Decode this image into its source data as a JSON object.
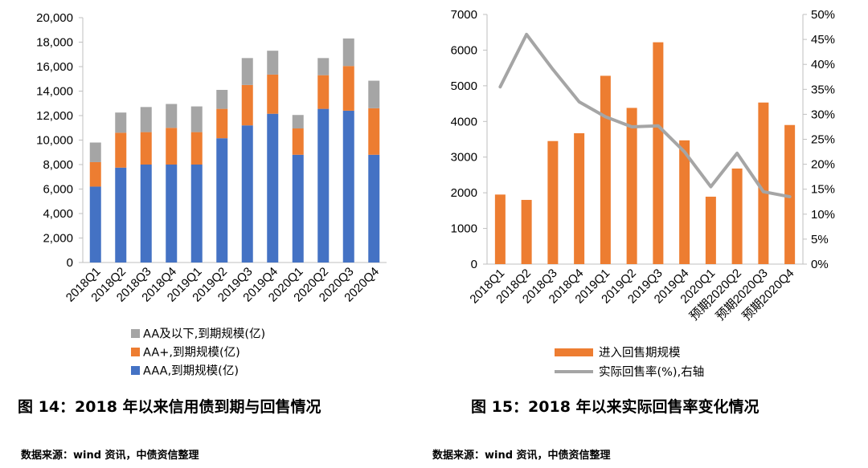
{
  "colors": {
    "aaa": "#4472C4",
    "aa_plus": "#ED7D31",
    "aa_below": "#A5A5A5",
    "putback_bar": "#ED7D31",
    "putback_line": "#A5A5A5"
  },
  "chart_data": [
    {
      "type": "bar",
      "stacked": true,
      "categories": [
        "2018Q1",
        "2018Q2",
        "2018Q3",
        "2018Q4",
        "2019Q1",
        "2019Q2",
        "2019Q3",
        "2019Q4",
        "2020Q1",
        "2020Q2",
        "2020Q3",
        "2020Q4"
      ],
      "series": [
        {
          "name": "AAA,到期规模(亿)",
          "values": [
            6200,
            7750,
            8000,
            8000,
            8000,
            10150,
            11200,
            12150,
            8800,
            12550,
            12400,
            8800
          ]
        },
        {
          "name": "AA+,到期规模(亿)",
          "values": [
            2000,
            2850,
            2650,
            3000,
            2650,
            2400,
            3300,
            3200,
            2150,
            2750,
            3650,
            3800
          ]
        },
        {
          "name": "AA及以下,到期规模(亿)",
          "values": [
            1600,
            1650,
            2050,
            1950,
            2100,
            1550,
            2200,
            1950,
            1100,
            1400,
            2250,
            2250
          ]
        }
      ],
      "ylim": [
        0,
        20000
      ],
      "yticks": [
        "0",
        "2,000",
        "4,000",
        "6,000",
        "8,000",
        "10,000",
        "12,000",
        "14,000",
        "16,000",
        "18,000",
        "20,000"
      ],
      "legend": [
        "AA及以下,到期规模(亿)",
        "AA+,到期规模(亿)",
        "AAA,到期规模(亿)"
      ],
      "legend_position": "bottom",
      "grid": false
    },
    {
      "type": "bar+line",
      "categories": [
        "2018Q1",
        "2018Q2",
        "2018Q3",
        "2018Q4",
        "2019Q1",
        "2019Q2",
        "2019Q3",
        "2019Q4",
        "2020Q1",
        "预期2020Q2",
        "预期2020Q3",
        "预期2020Q4"
      ],
      "bar_series": {
        "name": "进入回售期规模",
        "values": [
          1950,
          1800,
          3450,
          3670,
          5280,
          4380,
          6220,
          3470,
          1890,
          2680,
          4530,
          3900
        ]
      },
      "line_series": {
        "name": "实际回售率(%),右轴",
        "values": [
          35.5,
          46,
          39,
          32.5,
          29.5,
          27.5,
          27.7,
          22.5,
          15.5,
          22.2,
          14.5,
          13.5
        ]
      },
      "ylim_left": [
        0,
        7000
      ],
      "ylim_right": [
        0,
        50
      ],
      "yticks_left": [
        "0",
        "1000",
        "2000",
        "3000",
        "4000",
        "5000",
        "6000",
        "7000"
      ],
      "yticks_right": [
        "0%",
        "5%",
        "10%",
        "15%",
        "20%",
        "25%",
        "30%",
        "35%",
        "40%",
        "45%",
        "50%"
      ],
      "legend": [
        "进入回售期规模",
        "实际回售率(%),右轴"
      ],
      "legend_position": "bottom",
      "grid": false
    }
  ],
  "captions": {
    "fig14": "图 14：2018 年以来信用债到期与回售情况",
    "fig15": "图 15：2018 年以来实际回售率变化情况",
    "source14": "数据来源：wind 资讯，中债资信整理",
    "source15": "数据来源：wind 资讯，中债资信整理"
  }
}
